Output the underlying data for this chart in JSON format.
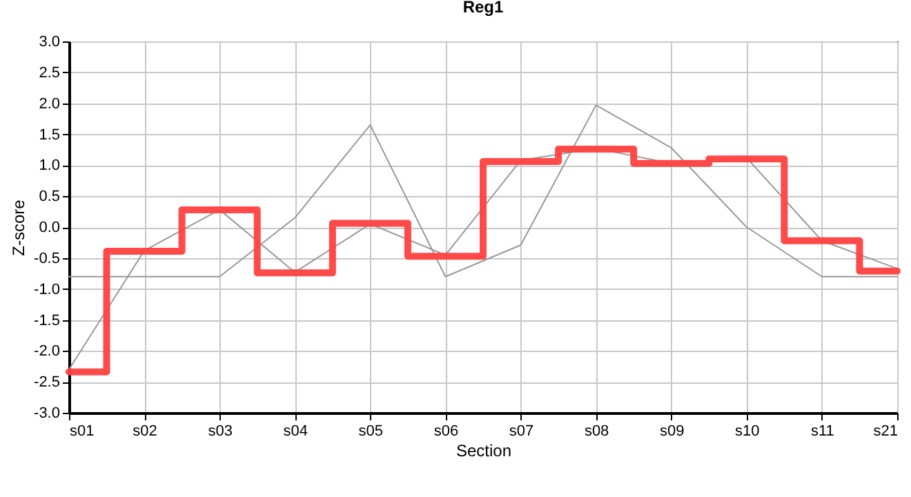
{
  "chart_data": {
    "type": "line",
    "title": "Reg1",
    "xlabel": "Section",
    "ylabel": "Z-score",
    "categories": [
      "s01",
      "s02",
      "s03",
      "s04",
      "s05",
      "s06",
      "s07",
      "s08",
      "s09",
      "s10",
      "s11",
      "s21"
    ],
    "ylim": [
      -3,
      3
    ],
    "yticks": [
      {
        "value": -3,
        "label": "-3.0"
      },
      {
        "value": -2.5,
        "label": "-2.5"
      },
      {
        "value": -2,
        "label": "-2.0"
      },
      {
        "value": -1.5,
        "label": "-1.5"
      },
      {
        "value": -1,
        "label": "-1.0"
      },
      {
        "value": -0.5,
        "label": "-0.5"
      },
      {
        "value": 0,
        "label": "0.0"
      },
      {
        "value": 0.5,
        "label": "0.5"
      },
      {
        "value": 1,
        "label": "1.0"
      },
      {
        "value": 1.5,
        "label": "1.5"
      },
      {
        "value": 2,
        "label": "2.0"
      },
      {
        "value": 2.5,
        "label": "2.5"
      },
      {
        "value": 3,
        "label": "3.0"
      }
    ],
    "grid": true,
    "marker": "none",
    "line_style": "solid",
    "series": [
      {
        "type": "line",
        "color": "#999999",
        "values": [
          -0.8,
          -0.8,
          -0.8,
          0.15,
          1.65,
          -0.8,
          -0.29,
          1.97,
          1.28,
          0.0,
          -0.8,
          -0.8
        ]
      },
      {
        "type": "line",
        "color": "#999999",
        "values": [
          -2.3,
          -0.38,
          0.28,
          -0.73,
          0.05,
          -0.45,
          1.08,
          1.27,
          1.03,
          1.12,
          -0.22,
          -0.67
        ]
      },
      {
        "type": "step",
        "color": "#ff4040",
        "values": [
          -2.34,
          -0.39,
          0.28,
          -0.74,
          0.06,
          -0.47,
          1.06,
          1.26,
          1.03,
          1.1,
          -0.22,
          -0.71
        ]
      }
    ]
  }
}
